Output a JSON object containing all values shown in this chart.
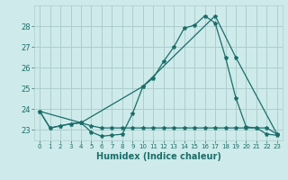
{
  "xlabel": "Humidex (Indice chaleur)",
  "bg_color": "#ceeaea",
  "grid_color": "#aecece",
  "line_color": "#1a6e6a",
  "xlim": [
    -0.5,
    23.5
  ],
  "ylim": [
    22.5,
    29.0
  ],
  "yticks": [
    23,
    24,
    25,
    26,
    27,
    28
  ],
  "xticks": [
    0,
    1,
    2,
    3,
    4,
    5,
    6,
    7,
    8,
    9,
    10,
    11,
    12,
    13,
    14,
    15,
    16,
    17,
    18,
    19,
    20,
    21,
    22,
    23
  ],
  "line1_x": [
    0,
    1,
    2,
    3,
    4,
    5,
    6,
    7,
    8,
    9,
    10,
    11,
    12,
    13,
    14,
    15,
    16,
    17,
    18,
    19,
    20,
    21,
    22,
    23
  ],
  "line1_y": [
    23.9,
    23.1,
    23.2,
    23.3,
    23.35,
    22.9,
    22.7,
    22.75,
    22.8,
    23.8,
    25.1,
    25.5,
    26.3,
    27.0,
    27.9,
    28.05,
    28.5,
    28.15,
    26.5,
    24.55,
    23.15,
    23.1,
    22.8,
    22.75
  ],
  "line2_x": [
    0,
    1,
    2,
    3,
    4,
    5,
    6,
    7,
    8,
    9,
    10,
    11,
    12,
    13,
    14,
    15,
    16,
    17,
    18,
    19,
    20,
    21,
    22,
    23
  ],
  "line2_y": [
    23.9,
    23.1,
    23.2,
    23.3,
    23.35,
    23.2,
    23.1,
    23.1,
    23.1,
    23.1,
    23.1,
    23.1,
    23.1,
    23.1,
    23.1,
    23.1,
    23.1,
    23.1,
    23.1,
    23.1,
    23.1,
    23.1,
    23.1,
    22.8
  ],
  "line3_x": [
    0,
    4,
    10,
    17,
    19,
    23
  ],
  "line3_y": [
    23.9,
    23.35,
    25.1,
    28.5,
    26.5,
    22.8
  ]
}
